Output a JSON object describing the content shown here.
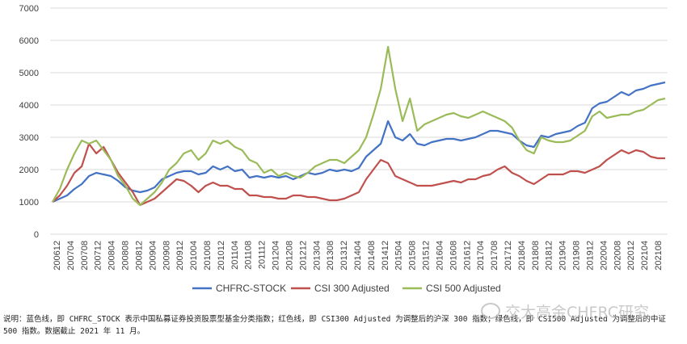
{
  "chart_data": {
    "type": "line",
    "title": "",
    "xlabel": "",
    "ylabel": "",
    "ylim": [
      0,
      7000
    ],
    "yticks": [
      0,
      1000,
      2000,
      3000,
      4000,
      5000,
      6000,
      7000
    ],
    "grid": true,
    "legend_position": "bottom",
    "tick_labels": [
      "200612",
      "200704",
      "200708",
      "200712",
      "200804",
      "200808",
      "200812",
      "200904",
      "200908",
      "200912",
      "201004",
      "201008",
      "201012",
      "201104",
      "201108",
      "201112",
      "201204",
      "201208",
      "201212",
      "201304",
      "201308",
      "201312",
      "201404",
      "201408",
      "201412",
      "201504",
      "201508",
      "201512",
      "201604",
      "201608",
      "201612",
      "201704",
      "201708",
      "201712",
      "201804",
      "201808",
      "201812",
      "201904",
      "201908",
      "201912",
      "202004",
      "202008",
      "202012",
      "202104",
      "202108"
    ],
    "series": [
      {
        "name": "CHFRC-STOCK",
        "color": "#4472C4",
        "values": [
          1000,
          1100,
          1200,
          1400,
          1550,
          1800,
          1900,
          1850,
          1800,
          1650,
          1450,
          1350,
          1300,
          1350,
          1450,
          1700,
          1800,
          1900,
          1950,
          1950,
          1850,
          1900,
          2100,
          2000,
          2100,
          1950,
          2000,
          1750,
          1800,
          1750,
          1800,
          1750,
          1800,
          1700,
          1800,
          1900,
          1850,
          1900,
          2000,
          1950,
          2000,
          1950,
          2050,
          2400,
          2600,
          2800,
          3500,
          3000,
          2900,
          3100,
          2800,
          2750,
          2850,
          2900,
          2950,
          2950,
          2900,
          2950,
          3000,
          3100,
          3200,
          3200,
          3150,
          3100,
          2900,
          2750,
          2700,
          3050,
          3000,
          3100,
          3150,
          3200,
          3350,
          3450,
          3900,
          4050,
          4100,
          4250,
          4400,
          4300,
          4450,
          4500,
          4600,
          4650,
          4700
        ]
      },
      {
        "name": "CSI 300 Adjusted",
        "color": "#C0504D",
        "values": [
          1000,
          1200,
          1500,
          1900,
          2100,
          2800,
          2500,
          2700,
          2300,
          1900,
          1600,
          1300,
          900,
          1000,
          1100,
          1300,
          1500,
          1700,
          1650,
          1500,
          1300,
          1500,
          1600,
          1500,
          1500,
          1400,
          1400,
          1200,
          1200,
          1150,
          1150,
          1100,
          1100,
          1200,
          1200,
          1150,
          1150,
          1100,
          1050,
          1050,
          1100,
          1200,
          1300,
          1700,
          2000,
          2300,
          2200,
          1800,
          1700,
          1600,
          1500,
          1500,
          1500,
          1550,
          1600,
          1650,
          1600,
          1700,
          1700,
          1800,
          1850,
          2000,
          2100,
          1900,
          1800,
          1650,
          1550,
          1700,
          1850,
          1850,
          1850,
          1950,
          1950,
          1900,
          2000,
          2100,
          2300,
          2450,
          2600,
          2500,
          2600,
          2550,
          2400,
          2350,
          2350
        ]
      },
      {
        "name": "CSI 500 Adjusted",
        "color": "#9BBB59",
        "values": [
          1000,
          1400,
          2000,
          2500,
          2900,
          2800,
          2900,
          2600,
          2300,
          1800,
          1500,
          1100,
          900,
          1100,
          1300,
          1600,
          2000,
          2200,
          2500,
          2600,
          2300,
          2500,
          2900,
          2800,
          2900,
          2700,
          2600,
          2300,
          2200,
          1900,
          2000,
          1800,
          1900,
          1800,
          1750,
          1900,
          2100,
          2200,
          2300,
          2300,
          2200,
          2400,
          2600,
          3000,
          3700,
          4500,
          5800,
          4500,
          3500,
          4200,
          3200,
          3400,
          3500,
          3600,
          3700,
          3750,
          3650,
          3600,
          3700,
          3800,
          3700,
          3600,
          3500,
          3300,
          2900,
          2600,
          2500,
          3000,
          2900,
          2850,
          2850,
          2900,
          3050,
          3200,
          3650,
          3800,
          3600,
          3650,
          3700,
          3700,
          3800,
          3850,
          4000,
          4150,
          4200
        ]
      }
    ]
  },
  "note": {
    "line1": "说明：蓝色线，即 CHFRC_STOCK 表示中国私募证券投资股票型基金分类指数；红色线，即 CSI300 Adjusted 为调整后的沪深 300 指数；绿色线，即 CSI500 Adjusted 为调整后的中证",
    "line2": "500 指数。数据截止 2021 年 11 月。"
  },
  "watermark": {
    "text": "交大高金CHFRC研究",
    "icon": "wechat-logo-icon"
  }
}
